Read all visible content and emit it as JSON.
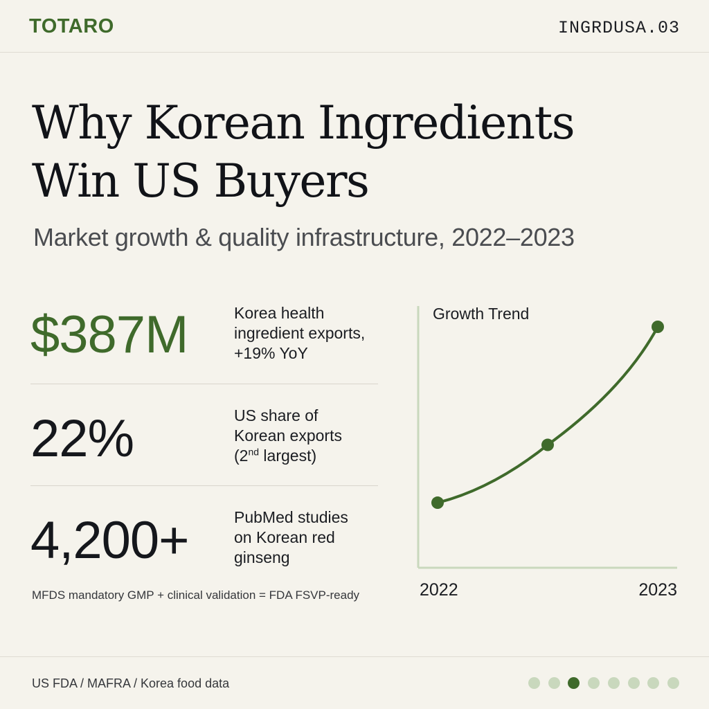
{
  "header": {
    "brand": "TOTARO",
    "code": "INGRDUSA.03"
  },
  "title_line1": "Why Korean Ingredients",
  "title_line2": "Win US Buyers",
  "subtitle": "Market growth & quality infrastructure, 2022–2023",
  "stats": [
    {
      "value": "$387M",
      "desc_lines": [
        "Korea health",
        "ingredient exports,",
        "+19% YoY"
      ],
      "color": "#3f6a2b"
    },
    {
      "value": "22%",
      "desc_line1": "US share of",
      "desc_line2": "Korean exports",
      "desc_line3_pre": "(2",
      "desc_line3_sup": "nd",
      "desc_line3_post": " largest)",
      "color": "#15171c"
    },
    {
      "value": "4,200+",
      "desc_lines": [
        "PubMed studies",
        "on Korean red",
        "ginseng"
      ],
      "color": "#15171c"
    }
  ],
  "footnote": "MFDS mandatory GMP + clinical validation = FDA FSVP-ready",
  "source": "US FDA / MAFRA / Korea food data",
  "pagination": {
    "total": 8,
    "active_index": 2
  },
  "colors": {
    "accent": "#3f6a2b",
    "dot_inactive": "#c9d8bd",
    "axis": "#c9d8bd"
  },
  "chart_data": {
    "type": "line",
    "title": "Growth Trend",
    "x_tick_labels": [
      "2022",
      "2023"
    ],
    "series": [
      {
        "values": [
          0.27,
          0.51,
          1.0
        ]
      }
    ],
    "note": "no y-axis scale shown; values are relative heights"
  }
}
